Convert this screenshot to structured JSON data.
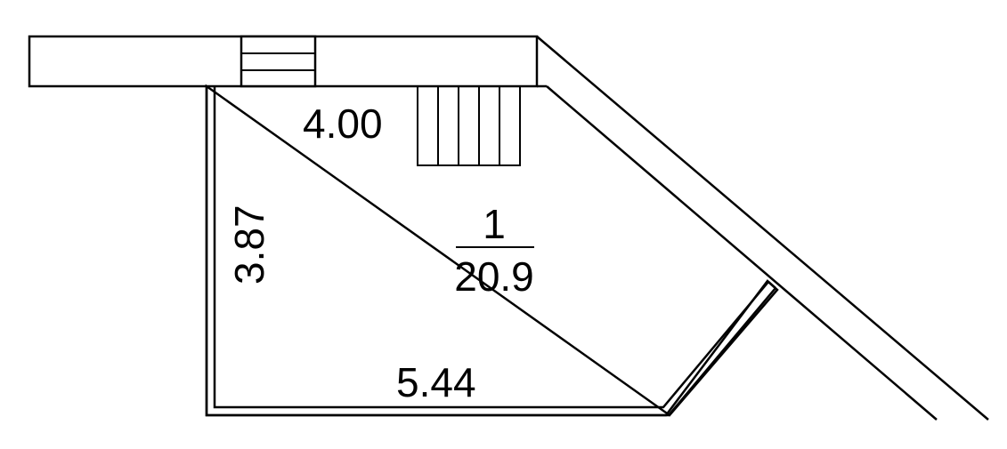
{
  "room": {
    "number": "1",
    "area": "20.9"
  },
  "dimensions": {
    "top": "4.00",
    "left": "3.87",
    "bottom": "5.44"
  },
  "colors": {
    "line": "#000000",
    "background": "#ffffff"
  }
}
